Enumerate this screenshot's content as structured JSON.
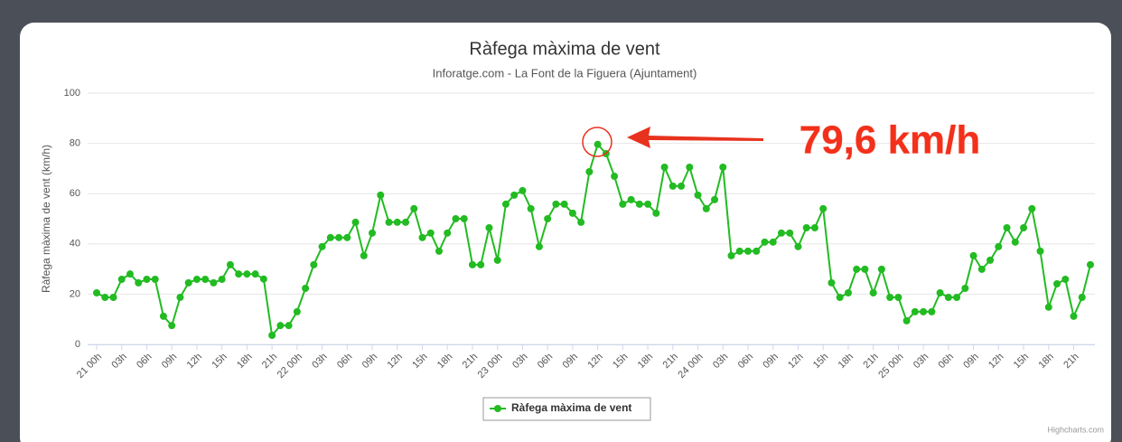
{
  "chart_data": {
    "type": "line",
    "title": "Ràfega màxima de vent",
    "subtitle": "Inforatge.com - La Font de la Figuera (Ajuntament)",
    "y_axis_label": "Ràfega màxima de vent (km/h)",
    "annotation": "79,6 km/h",
    "credits": "Highcharts.com",
    "legend": "bottom",
    "grid": true,
    "ylim": [
      0,
      100
    ],
    "yticks": [
      0,
      20,
      40,
      60,
      80,
      100
    ],
    "categories": [
      "21 00h",
      null,
      null,
      "03h",
      null,
      null,
      "06h",
      null,
      null,
      "09h",
      null,
      null,
      "12h",
      null,
      null,
      "15h",
      null,
      null,
      "18h",
      null,
      null,
      "21h",
      null,
      null,
      "22 00h",
      null,
      null,
      "03h",
      null,
      null,
      "06h",
      null,
      null,
      "09h",
      null,
      null,
      "12h",
      null,
      null,
      "15h",
      null,
      null,
      "18h",
      null,
      null,
      "21h",
      null,
      null,
      "23 00h",
      null,
      null,
      "03h",
      null,
      null,
      "06h",
      null,
      null,
      "09h",
      null,
      null,
      "12h",
      null,
      null,
      "15h",
      null,
      null,
      "18h",
      null,
      null,
      "21h",
      null,
      null,
      "24 00h",
      null,
      null,
      "03h",
      null,
      null,
      "06h",
      null,
      null,
      "09h",
      null,
      null,
      "12h",
      null,
      null,
      "15h",
      null,
      null,
      "18h",
      null,
      null,
      "21h",
      null,
      null,
      "25 00h",
      null,
      null,
      "03h",
      null,
      null,
      "06h",
      null,
      null,
      "09h",
      null,
      null,
      "12h",
      null,
      null,
      "15h",
      null,
      null,
      "18h",
      null,
      null,
      "21h",
      null,
      null
    ],
    "series": [
      {
        "name": "Ràfega màxima de vent",
        "color": "#22bb22",
        "values": [
          20.5,
          18.7,
          18.7,
          25.9,
          28,
          24.5,
          25.9,
          25.9,
          11.2,
          7.5,
          18.7,
          24.5,
          25.9,
          25.9,
          24.5,
          25.9,
          31.7,
          28,
          28,
          28,
          26,
          3.6,
          7.5,
          7.5,
          13,
          22.3,
          31.7,
          38.9,
          42.5,
          42.5,
          42.5,
          48.6,
          35.3,
          44.3,
          59.4,
          48.6,
          48.6,
          48.6,
          54,
          42.5,
          44.3,
          37.1,
          44.3,
          50,
          50,
          31.7,
          31.7,
          46.4,
          33.5,
          55.8,
          59.4,
          61.2,
          54,
          38.9,
          50,
          55.8,
          55.8,
          52.2,
          48.6,
          68.7,
          79.6,
          75.9,
          66.9,
          55.8,
          57.6,
          55.8,
          55.8,
          52.2,
          70.5,
          63,
          63,
          70.5,
          59.4,
          54,
          57.6,
          70.5,
          35.3,
          37.1,
          37.1,
          37.1,
          40.7,
          40.7,
          44.3,
          44.3,
          38.9,
          46.4,
          46.4,
          54,
          24.5,
          18.7,
          20.5,
          29.9,
          29.9,
          20.5,
          29.9,
          18.7,
          18.7,
          9.4,
          13,
          13,
          13,
          20.5,
          18.7,
          18.7,
          22.3,
          35.3,
          29.9,
          33.5,
          38.9,
          46.4,
          40.7,
          46.4,
          54,
          37.1,
          14.8,
          24.1,
          25.9,
          11.2,
          18.7,
          31.7
        ]
      }
    ]
  }
}
